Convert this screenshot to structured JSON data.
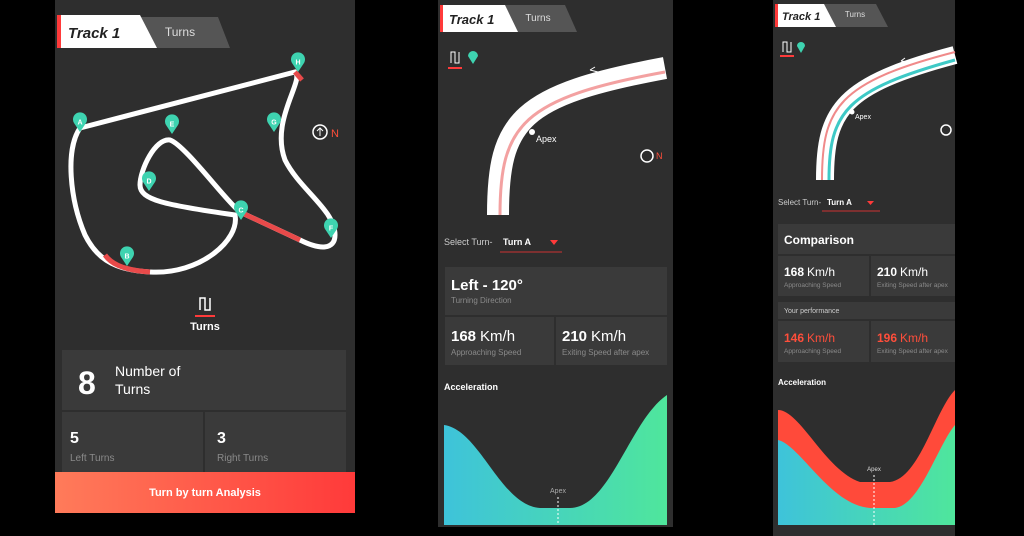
{
  "screens": [
    {
      "tabs": [
        "Track 1",
        "Turns"
      ],
      "pins": [
        "A",
        "B",
        "C",
        "D",
        "E",
        "F",
        "G",
        "H"
      ],
      "compass": "N",
      "section": "Turns",
      "summary": {
        "count": 8,
        "count_label": [
          "Number of",
          "Turns"
        ],
        "left": {
          "value": 5,
          "label": "Left Turns"
        },
        "right": {
          "value": 3,
          "label": "Right Turns"
        }
      },
      "button": "Turn by turn Analysis"
    },
    {
      "tabs": [
        "Track 1",
        "Turns"
      ],
      "apex": "Apex",
      "compass": "N",
      "select_label": "Select Turn-",
      "select_value": "Turn A",
      "direction": "Left - 120°",
      "direction_label": "Turning Direction",
      "approach": {
        "value": 168,
        "unit": "Km/h",
        "label": "Approaching Speed"
      },
      "exit": {
        "value": 210,
        "unit": "Km/h",
        "label": "Exiting Speed after apex"
      },
      "chart_title": "Acceleration",
      "chart_marker": "Apex"
    },
    {
      "tabs": [
        "Track 1",
        "Turns"
      ],
      "apex": "Apex",
      "select_label": "Select Turn-",
      "select_value": "Turn A",
      "comparison_title": "Comparison",
      "approach": {
        "value": 168,
        "unit": "Km/h",
        "label": "Approaching Speed"
      },
      "exit": {
        "value": 210,
        "unit": "Km/h",
        "label": "Exiting Speed after apex"
      },
      "performance_title": "Your performance",
      "your_approach": {
        "value": 146,
        "unit": "Km/h",
        "label": "Approaching Speed"
      },
      "your_exit": {
        "value": 196,
        "unit": "Km/h",
        "label": "Exiting Speed after apex"
      },
      "chart_title": "Acceleration",
      "chart_marker": "Apex"
    }
  ]
}
